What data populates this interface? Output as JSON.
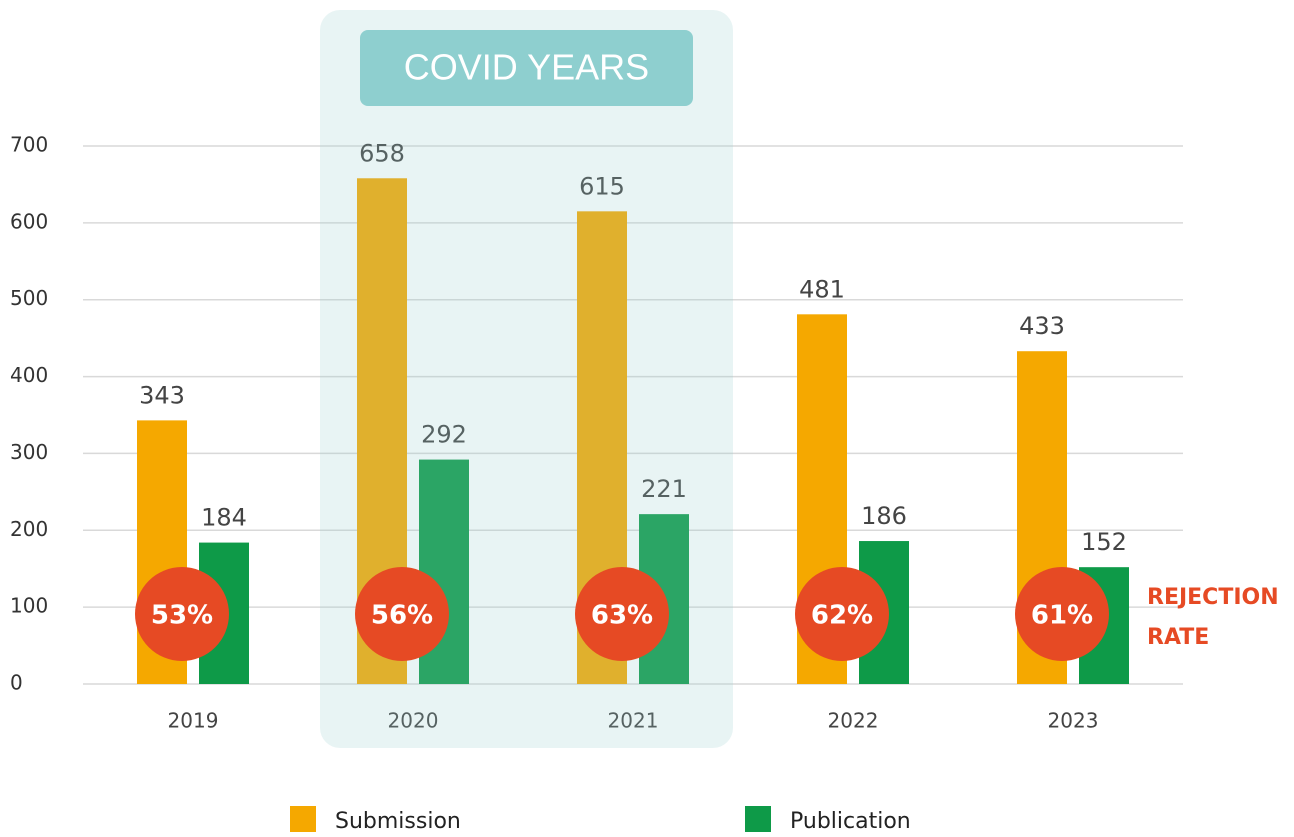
{
  "chart_data": {
    "type": "bar",
    "categories": [
      "2019",
      "2020",
      "2021",
      "2022",
      "2023"
    ],
    "series": [
      {
        "name": "Submission",
        "color": "#f5a800",
        "values": [
          343,
          658,
          615,
          481,
          433
        ]
      },
      {
        "name": "Publication",
        "color": "#0e9a48",
        "values": [
          184,
          292,
          221,
          186,
          152
        ]
      }
    ],
    "rejection_rate": {
      "name": "REJECTION RATE",
      "color": "#e64a24",
      "values": [
        53,
        56,
        63,
        62,
        61
      ],
      "value_labels": [
        "53%",
        "56%",
        "63%",
        "62%",
        "61%"
      ]
    },
    "highlight": {
      "label": "COVID YEARS",
      "from": "2020",
      "to": "2021"
    },
    "ylim": [
      0,
      700
    ],
    "yticks": [
      0,
      100,
      200,
      300,
      400,
      500,
      600,
      700
    ],
    "grid": true
  }
}
